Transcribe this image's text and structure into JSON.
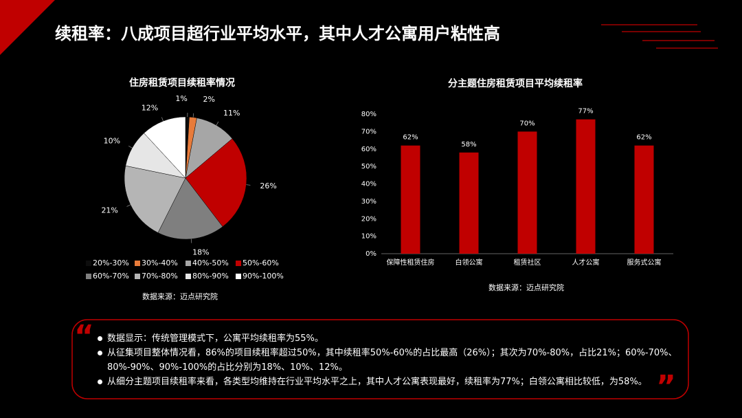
{
  "title": "续租率：八成项目超行业平均水平，其中人才公寓用户粘性高",
  "chart_data": [
    {
      "type": "pie",
      "title": "住房租赁项目续租率情况",
      "categories": [
        "20%-30%",
        "30%-40%",
        "40%-50%",
        "50%-60%",
        "60%-70%",
        "70%-80%",
        "80%-90%",
        "90%-100%"
      ],
      "values": [
        1,
        2,
        11,
        26,
        18,
        21,
        10,
        12
      ],
      "value_labels": [
        "1%",
        "2%",
        "11%",
        "26%",
        "18%",
        "21%",
        "10%",
        "12%"
      ],
      "colors": [
        "#0d0d0d",
        "#e87b3a",
        "#a6a6a6",
        "#c00000",
        "#7f7f7f",
        "#b5b5b5",
        "#e6e6e6",
        "#ffffff"
      ],
      "source": "数据来源：迈点研究院"
    },
    {
      "type": "bar",
      "title": "分主题住房租赁项目平均续租率",
      "categories": [
        "保障性租赁住房",
        "白领公寓",
        "租赁社区",
        "人才公寓",
        "服务式公寓"
      ],
      "values": [
        62,
        58,
        70,
        77,
        62
      ],
      "value_labels": [
        "62%",
        "58%",
        "70%",
        "77%",
        "62%"
      ],
      "color": "#c00000",
      "ylim": [
        0,
        80
      ],
      "yticks": [
        {
          "value": 0,
          "label": "0%"
        },
        {
          "value": 10,
          "label": "10%"
        },
        {
          "value": 20,
          "label": "20%"
        },
        {
          "value": 30,
          "label": "30%"
        },
        {
          "value": 40,
          "label": "40%"
        },
        {
          "value": 50,
          "label": "50%"
        },
        {
          "value": 60,
          "label": "60%"
        },
        {
          "value": 70,
          "label": "70%"
        },
        {
          "value": 80,
          "label": "80%"
        }
      ],
      "source": "数据来源：迈点研究院"
    }
  ],
  "notes": [
    "数据显示：传统管理模式下，公寓平均续租率为55%。",
    "从征集项目整体情况看，86%的项目续租率超过50%，其中续租率50%-60%的占比最高（26%）；其次为70%-80%，占比21%；60%-70%、80%-90%、90%-100%的占比分别为18%、10%、12%。",
    "从细分主题项目续租率来看，各类型均维持在行业平均水平之上，其中人才公寓表现最好，续租率为77%；白领公寓相比较低，为58%。"
  ]
}
